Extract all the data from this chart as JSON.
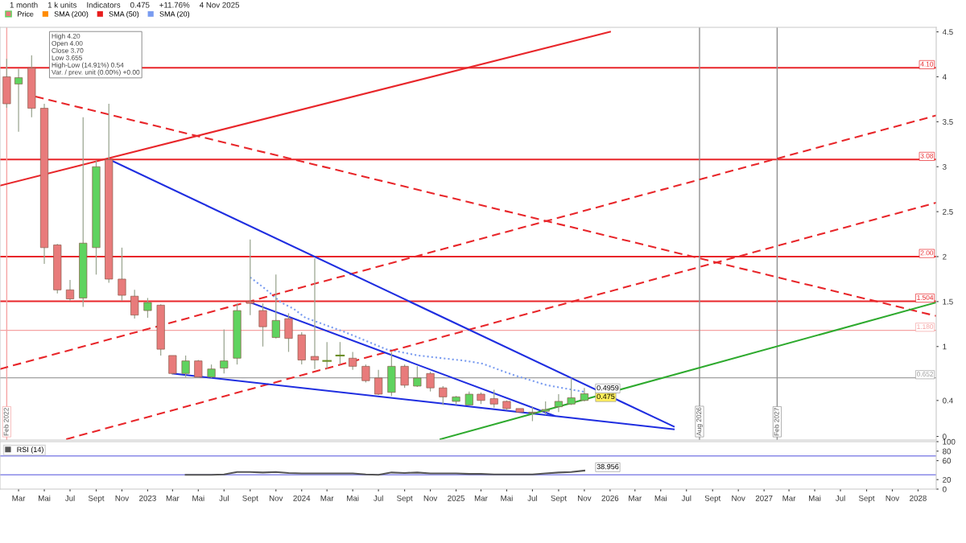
{
  "chart_data": [
    {
      "type": "candlestick",
      "annotations": [
        "1 month",
        "1 k units",
        "Indicators",
        "0.475",
        "+11.76%",
        "4 Nov 2025",
        "High 4.20\nOpen 4.00\nClose 3.70\nLow 3.655\nHigh-Low (14.91%) 0.54\nVar. / prev. unit (0.00%) +0.00"
      ],
      "series": [
        {
          "type": "candlestick",
          "name": "Price",
          "x": [
            "2022-02",
            "2022-03",
            "2022-04",
            "2022-05",
            "2022-06",
            "2022-07",
            "2022-08",
            "2022-09",
            "2022-10",
            "2022-11",
            "2022-12",
            "2023-01",
            "2023-02",
            "2023-03",
            "2023-04",
            "2023-05",
            "2023-06",
            "2023-07",
            "2023-08",
            "2023-09",
            "2023-10",
            "2023-11",
            "2023-12",
            "2024-01",
            "2024-02",
            "2024-03",
            "2024-04",
            "2024-05",
            "2024-06",
            "2024-07",
            "2024-08",
            "2024-09",
            "2024-10",
            "2024-11",
            "2024-12",
            "2025-01",
            "2025-02",
            "2025-03",
            "2025-04",
            "2025-05",
            "2025-06",
            "2025-07",
            "2025-08",
            "2025-09",
            "2025-10",
            "2025-11"
          ],
          "ohlc": [
            [
              4.0,
              4.2,
              3.655,
              3.7
            ],
            [
              3.92,
              4.09,
              3.39,
              3.99
            ],
            [
              4.1,
              4.24,
              3.55,
              3.65
            ],
            [
              3.65,
              3.7,
              1.92,
              2.1
            ],
            [
              2.13,
              2.14,
              1.59,
              1.63
            ],
            [
              1.63,
              1.74,
              1.51,
              1.53
            ],
            [
              1.54,
              3.55,
              1.44,
              2.15
            ],
            [
              2.1,
              3.07,
              1.8,
              3.0
            ],
            [
              3.08,
              3.7,
              1.71,
              1.75
            ],
            [
              1.75,
              2.1,
              1.51,
              1.57
            ],
            [
              1.56,
              1.63,
              1.31,
              1.35
            ],
            [
              1.4,
              1.54,
              1.32,
              1.49
            ],
            [
              1.46,
              1.47,
              0.9,
              0.97
            ],
            [
              0.9,
              0.9,
              0.69,
              0.7
            ],
            [
              0.7,
              0.9,
              0.66,
              0.84
            ],
            [
              0.84,
              0.85,
              0.65,
              0.66
            ],
            [
              0.66,
              0.8,
              0.65,
              0.75
            ],
            [
              0.76,
              1.19,
              0.7,
              0.84
            ],
            [
              0.87,
              1.48,
              0.8,
              1.4
            ],
            [
              1.5,
              2.19,
              1.35,
              1.48
            ],
            [
              1.4,
              1.48,
              1.0,
              1.22
            ],
            [
              1.1,
              1.8,
              1.09,
              1.29
            ],
            [
              1.31,
              1.37,
              0.94,
              1.09
            ],
            [
              1.13,
              1.16,
              0.8,
              0.85
            ],
            [
              0.89,
              1.98,
              0.75,
              0.85
            ],
            [
              0.84,
              1.05,
              0.75,
              0.84
            ],
            [
              0.9,
              1.05,
              0.8,
              0.9
            ],
            [
              0.87,
              0.94,
              0.74,
              0.78
            ],
            [
              0.78,
              0.8,
              0.6,
              0.62
            ],
            [
              0.65,
              0.74,
              0.46,
              0.47
            ],
            [
              0.49,
              0.94,
              0.45,
              0.78
            ],
            [
              0.78,
              0.8,
              0.54,
              0.57
            ],
            [
              0.56,
              0.78,
              0.55,
              0.65
            ],
            [
              0.7,
              0.72,
              0.5,
              0.54
            ],
            [
              0.54,
              0.56,
              0.35,
              0.44
            ],
            [
              0.39,
              0.45,
              0.35,
              0.44
            ],
            [
              0.35,
              0.5,
              0.35,
              0.47
            ],
            [
              0.47,
              0.49,
              0.36,
              0.4
            ],
            [
              0.42,
              0.52,
              0.32,
              0.36
            ],
            [
              0.39,
              0.4,
              0.29,
              0.31
            ],
            [
              0.31,
              0.31,
              0.27,
              0.27
            ],
            [
              0.26,
              0.33,
              0.17,
              0.27
            ],
            [
              0.28,
              0.39,
              0.24,
              0.3
            ],
            [
              0.33,
              0.47,
              0.27,
              0.39
            ],
            [
              0.36,
              0.65,
              0.35,
              0.43
            ],
            [
              0.4,
              0.54,
              0.39,
              0.475
            ]
          ],
          "colors": [
            "#e87b7b",
            "#5fd35f",
            "#e87b7b",
            "#e87b7b",
            "#e87b7b",
            "#e87b7b",
            "#5fd35f",
            "#5fd35f",
            "#e87b7b",
            "#e87b7b",
            "#e87b7b",
            "#5fd35f",
            "#e87b7b",
            "#e87b7b",
            "#5fd35f",
            "#e87b7b",
            "#5fd35f",
            "#5fd35f",
            "#5fd35f",
            "#e87b7b",
            "#e87b7b",
            "#5fd35f",
            "#e87b7b",
            "#e87b7b",
            "#e87b7b",
            "#6b8e23",
            "#6b8e23",
            "#e87b7b",
            "#e87b7b",
            "#e87b7b",
            "#5fd35f",
            "#e87b7b",
            "#5fd35f",
            "#e87b7b",
            "#e87b7b",
            "#5fd35f",
            "#5fd35f",
            "#e87b7b",
            "#e87b7b",
            "#e87b7b",
            "#e87b7b",
            "#5fd35f",
            "#5fd35f",
            "#5fd35f",
            "#5fd35f",
            "#5fd35f"
          ],
          "value_labels": [
            null,
            null,
            null,
            null,
            null,
            null,
            null,
            null,
            null,
            null,
            null,
            null,
            null,
            null,
            null,
            null,
            null,
            null,
            null,
            null,
            null,
            null,
            null,
            null,
            null,
            null,
            null,
            null,
            null,
            null,
            null,
            null,
            null,
            null,
            null,
            null,
            null,
            null,
            null,
            null,
            null,
            null,
            null,
            null,
            null,
            "0.475"
          ]
        },
        {
          "type": "line",
          "name": "SMA (200)",
          "color": "#ff8c00"
        },
        {
          "type": "line",
          "name": "SMA (50)",
          "color": "#e81e1e"
        },
        {
          "type": "line",
          "name": "SMA (20)",
          "color": "#7a9cf0",
          "line_style": "dotted",
          "x": [
            "2023-09-01",
            "2023-10-07",
            "2023-11-13",
            "2023-12-13",
            "2024-01-10",
            "2024-04-13",
            "2024-07-19",
            "2024-10-04",
            "2025-01-25",
            "2025-03-04",
            "2025-05-19",
            "2025-08-04",
            "2025-11-01"
          ],
          "values": [
            1.77,
            1.64,
            1.49,
            1.42,
            1.32,
            1.16,
            0.97,
            0.9,
            0.84,
            0.81,
            0.68,
            0.57,
            0.4959
          ],
          "value_labels": [
            null,
            null,
            null,
            null,
            null,
            null,
            null,
            null,
            null,
            null,
            null,
            null,
            "0.4959"
          ]
        },
        {
          "type": "line",
          "color": "#e8262a",
          "line_style": "solid",
          "x": [
            "2022-01-16",
            "2026-01-01"
          ],
          "values": [
            2.79,
            4.5
          ]
        },
        {
          "type": "line",
          "color": "#e8262a",
          "line_style": "dashed",
          "x": [
            "2022-01-16",
            "2028-02-13"
          ],
          "values": [
            0.75,
            3.57
          ]
        },
        {
          "type": "line",
          "color": "#e8262a",
          "line_style": "dashed",
          "x": [
            "2022-06-22",
            "2028-02-13"
          ],
          "values": [
            -0.03,
            2.6
          ]
        },
        {
          "type": "line",
          "color": "#e8262a",
          "line_style": "dashed",
          "x": [
            "2022-04-10",
            "2028-02-13"
          ],
          "values": [
            3.78,
            1.34
          ]
        },
        {
          "type": "line",
          "color": "#1f2ee0",
          "line_style": "solid",
          "x": [
            "2022-10-11",
            "2026-06-01"
          ],
          "values": [
            3.06,
            0.11
          ]
        },
        {
          "type": "line",
          "color": "#1f2ee0",
          "line_style": "solid",
          "x": [
            "2023-03-01",
            "2026-06-01"
          ],
          "values": [
            0.7,
            0.08
          ]
        },
        {
          "type": "line",
          "color": "#1f2ee0",
          "line_style": "solid",
          "x": [
            "2023-09-01",
            "2025-08-22"
          ],
          "values": [
            1.49,
            0.23
          ]
        },
        {
          "type": "line",
          "color": "#2eaa2e",
          "line_style": "solid",
          "x": [
            "2024-11-25",
            "2028-02-13"
          ],
          "values": [
            -0.03,
            1.49
          ]
        }
      ],
      "ref_lines": [
        {
          "axis": "y",
          "value": 4.1,
          "label": "4.10",
          "color": "#e8262a"
        },
        {
          "axis": "y",
          "value": 3.08,
          "label": "3.08",
          "color": "#e8262a"
        },
        {
          "axis": "y",
          "value": 2.0,
          "label": "2.00",
          "color": "#e8262a"
        },
        {
          "axis": "y",
          "value": 1.504,
          "label": "1.504",
          "color": "#e8262a"
        },
        {
          "axis": "y",
          "value": 1.18,
          "label": "1.180",
          "color": "#f5a3a3"
        },
        {
          "axis": "y",
          "value": 0.652,
          "label": "0.652",
          "color": "#a0a0a0"
        },
        {
          "axis": "x",
          "value": "2022-02",
          "label": "Feb 2022",
          "color": "#f5a3a3"
        },
        {
          "axis": "x",
          "value": "2026-08",
          "label": "Aug 2026",
          "color": "#909090"
        },
        {
          "axis": "x",
          "value": "2027-02",
          "label": "Feb 2027",
          "color": "#909090"
        }
      ],
      "xlim": [
        "2022-01-16",
        "2028-02-13"
      ],
      "ylim": [
        -0.04,
        4.55
      ],
      "yticks": [
        0,
        0.4,
        1,
        1.5,
        2,
        2.5,
        3,
        3.5,
        4,
        4.5
      ],
      "tick_labels": "y",
      "legend": "top left",
      "grid": false
    },
    {
      "type": "line",
      "series": [
        {
          "name": "RSI (14)",
          "color": "#555555",
          "x": [
            "2023-04",
            "2023-05",
            "2023-06",
            "2023-07",
            "2023-08",
            "2023-09",
            "2023-10",
            "2023-11",
            "2023-12",
            "2024-01",
            "2024-02",
            "2024-03",
            "2024-04",
            "2024-05",
            "2024-06",
            "2024-07",
            "2024-08",
            "2024-09",
            "2024-10",
            "2024-11",
            "2024-12",
            "2025-01",
            "2025-02",
            "2025-03",
            "2025-04",
            "2025-05",
            "2025-06",
            "2025-07",
            "2025-08",
            "2025-09",
            "2025-10",
            "2025-11"
          ],
          "values": [
            30,
            30,
            30,
            31,
            36,
            36,
            35,
            36,
            34,
            33,
            33,
            33,
            33,
            33,
            31,
            30,
            35,
            34,
            35,
            33,
            33,
            33,
            32,
            32,
            31,
            31,
            31,
            31,
            33,
            35,
            36,
            38.956
          ],
          "value_labels": [
            null,
            null,
            null,
            null,
            null,
            null,
            null,
            null,
            null,
            null,
            null,
            null,
            null,
            null,
            null,
            null,
            null,
            null,
            null,
            null,
            null,
            null,
            null,
            null,
            null,
            null,
            null,
            null,
            null,
            null,
            null,
            "38.956"
          ]
        }
      ],
      "ref_lines": [
        {
          "axis": "y",
          "value": 70,
          "color": "#8a8ae8"
        },
        {
          "axis": "y",
          "value": 30,
          "color": "#8a8ae8"
        }
      ],
      "xlim": [
        "2022-01-16",
        "2028-02-13"
      ],
      "xticks": [
        {
          "value": "2022-03",
          "label": "Mar"
        },
        {
          "value": "2022-05",
          "label": "Mai"
        },
        {
          "value": "2022-07",
          "label": "Jul"
        },
        {
          "value": "2022-09",
          "label": "Sept"
        },
        {
          "value": "2022-11",
          "label": "Nov"
        },
        {
          "value": "2023-01",
          "label": "2023"
        },
        {
          "value": "2023-03",
          "label": "Mar"
        },
        {
          "value": "2023-05",
          "label": "Mai"
        },
        {
          "value": "2023-07",
          "label": "Jul"
        },
        {
          "value": "2023-09",
          "label": "Sept"
        },
        {
          "value": "2023-11",
          "label": "Nov"
        },
        {
          "value": "2024-01",
          "label": "2024"
        },
        {
          "value": "2024-03",
          "label": "Mar"
        },
        {
          "value": "2024-05",
          "label": "Mai"
        },
        {
          "value": "2024-07",
          "label": "Jul"
        },
        {
          "value": "2024-09",
          "label": "Sept"
        },
        {
          "value": "2024-11",
          "label": "Nov"
        },
        {
          "value": "2025-01",
          "label": "2025"
        },
        {
          "value": "2025-03",
          "label": "Mar"
        },
        {
          "value": "2025-05",
          "label": "Mai"
        },
        {
          "value": "2025-07",
          "label": "Jul"
        },
        {
          "value": "2025-09",
          "label": "Sept"
        },
        {
          "value": "2025-11",
          "label": "Nov"
        },
        {
          "value": "2026-01",
          "label": "2026"
        },
        {
          "value": "2026-03",
          "label": "Mar"
        },
        {
          "value": "2026-05",
          "label": "Mai"
        },
        {
          "value": "2026-07",
          "label": "Jul"
        },
        {
          "value": "2026-09",
          "label": "Sept"
        },
        {
          "value": "2026-11",
          "label": "Nov"
        },
        {
          "value": "2027-01",
          "label": "2027"
        },
        {
          "value": "2027-03",
          "label": "Mar"
        },
        {
          "value": "2027-05",
          "label": "Mai"
        },
        {
          "value": "2027-07",
          "label": "Jul"
        },
        {
          "value": "2027-09",
          "label": "Sept"
        },
        {
          "value": "2027-11",
          "label": "Nov"
        },
        {
          "value": "2028-01",
          "label": "2028"
        }
      ],
      "ylim": [
        0,
        100
      ],
      "yticks": [
        0,
        20,
        60,
        80,
        100
      ],
      "legend": "top left",
      "grid": false
    }
  ]
}
